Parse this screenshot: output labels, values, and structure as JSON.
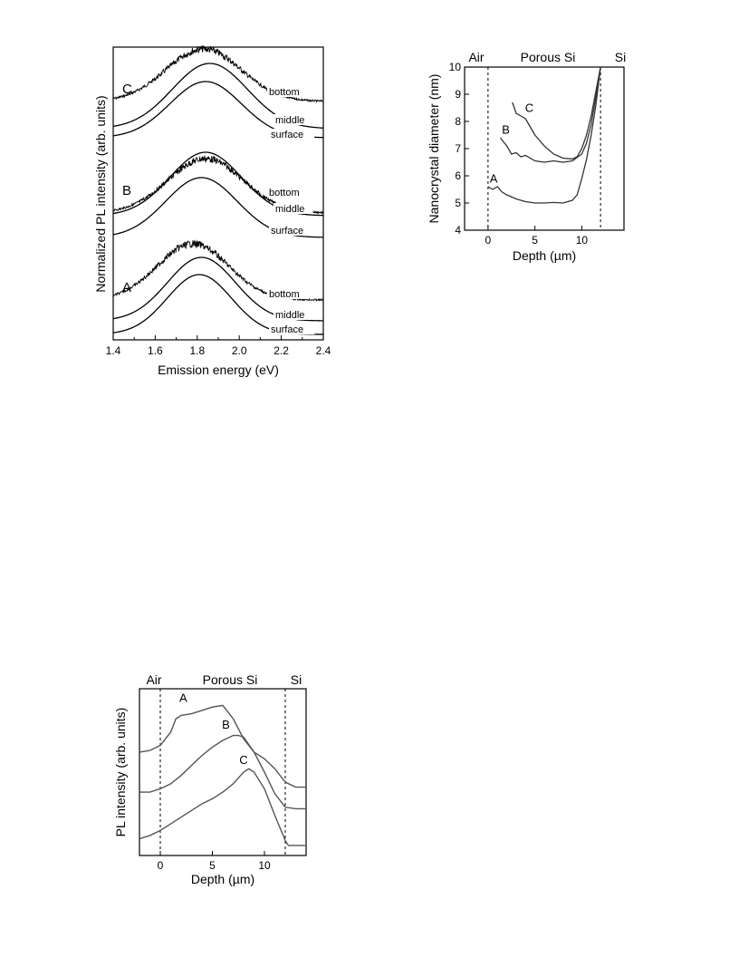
{
  "figures": {
    "pl_spectra": {
      "xlabel": "Emission energy  (eV)",
      "ylabel": "Normalized PL intensity  (arb. units)",
      "xticks": [
        "1.4",
        "1.6",
        "1.8",
        "2.0",
        "2.2",
        "2.4"
      ],
      "samples": [
        {
          "label": "C",
          "curves": [
            "bottom",
            "middle",
            "surface"
          ]
        },
        {
          "label": "B",
          "curves": [
            "bottom",
            "middle",
            "surface"
          ]
        },
        {
          "label": "A",
          "curves": [
            "bottom",
            "middle",
            "surface"
          ]
        }
      ]
    },
    "diameter": {
      "xlabel": "Depth (µm)",
      "ylabel": "Nanocrystal diameter (nm)",
      "region_labels": {
        "air": "Air",
        "porous": "Porous Si",
        "si": "Si"
      },
      "xticks": [
        "0",
        "5",
        "10"
      ],
      "yticks": [
        "4",
        "5",
        "6",
        "7",
        "8",
        "9",
        "10"
      ],
      "series_labels": [
        "A",
        "B",
        "C"
      ]
    },
    "pl_depth": {
      "xlabel": "Depth  (µm)",
      "ylabel": "PL intensity (arb. units)",
      "region_labels": {
        "air": "Air",
        "porous": "Porous Si",
        "si": "Si"
      },
      "xticks": [
        "0",
        "5",
        "10"
      ],
      "series_labels": [
        "A",
        "B",
        "C"
      ]
    }
  },
  "chart_data": [
    {
      "type": "line",
      "xlabel": "Emission energy  (eV)",
      "ylabel": "Normalized PL intensity  (arb. units)",
      "xlim": [
        1.4,
        2.4
      ],
      "grid": false,
      "series": [
        {
          "name": "C bottom",
          "peak_eV": 1.83,
          "fwhm_eV": 0.42,
          "noisy": true
        },
        {
          "name": "C middle",
          "peak_eV": 1.86,
          "fwhm_eV": 0.42,
          "noisy": false
        },
        {
          "name": "C surface",
          "peak_eV": 1.84,
          "fwhm_eV": 0.4,
          "noisy": false
        },
        {
          "name": "B bottom",
          "peak_eV": 1.84,
          "fwhm_eV": 0.42,
          "noisy": true
        },
        {
          "name": "B middle",
          "peak_eV": 1.84,
          "fwhm_eV": 0.4,
          "noisy": false
        },
        {
          "name": "B surface",
          "peak_eV": 1.82,
          "fwhm_eV": 0.4,
          "noisy": false
        },
        {
          "name": "A bottom",
          "peak_eV": 1.78,
          "fwhm_eV": 0.4,
          "noisy": true
        },
        {
          "name": "A middle",
          "peak_eV": 1.82,
          "fwhm_eV": 0.38,
          "noisy": false
        },
        {
          "name": "A surface",
          "peak_eV": 1.81,
          "fwhm_eV": 0.36,
          "noisy": false
        }
      ]
    },
    {
      "type": "line",
      "xlabel": "Depth (µm)",
      "ylabel": "Nanocrystal diameter (nm)",
      "xlim": [
        -2.5,
        14.5
      ],
      "ylim": [
        4,
        10
      ],
      "boundaries": [
        0,
        12
      ],
      "series": [
        {
          "name": "A",
          "x": [
            0,
            0.5,
            1,
            1.5,
            2,
            3,
            4,
            5,
            6,
            7,
            8,
            9,
            9.5,
            10,
            10.5,
            11,
            11.5,
            12
          ],
          "y": [
            5.6,
            5.5,
            5.6,
            5.4,
            5.3,
            5.15,
            5.05,
            5.0,
            5.0,
            5.02,
            5.0,
            5.1,
            5.3,
            5.9,
            6.6,
            7.5,
            8.6,
            10.0
          ]
        },
        {
          "name": "B",
          "x": [
            1.3,
            2,
            2.5,
            3,
            3.5,
            4,
            5,
            6,
            7,
            8,
            9,
            10,
            10.5,
            11,
            11.5,
            12
          ],
          "y": [
            7.4,
            7.1,
            6.8,
            6.85,
            6.7,
            6.75,
            6.55,
            6.5,
            6.55,
            6.5,
            6.55,
            6.8,
            7.2,
            7.9,
            8.9,
            10.0
          ]
        },
        {
          "name": "C",
          "x": [
            2.6,
            3,
            3.5,
            4,
            4.5,
            5,
            6,
            7,
            8,
            9,
            9.5,
            10,
            10.5,
            11,
            11.5,
            12
          ],
          "y": [
            8.7,
            8.3,
            8.2,
            8.1,
            7.8,
            7.5,
            7.1,
            6.8,
            6.65,
            6.62,
            6.7,
            7.0,
            7.5,
            8.2,
            9.1,
            10.0
          ]
        }
      ]
    },
    {
      "type": "line",
      "xlabel": "Depth  (µm)",
      "ylabel": "PL intensity (arb. units)",
      "xlim": [
        -2,
        14
      ],
      "boundaries": [
        0,
        12
      ],
      "series": [
        {
          "name": "A",
          "x": [
            -2,
            -1,
            0,
            0.5,
            1,
            1.5,
            2,
            3,
            4,
            5,
            6,
            7,
            8,
            9,
            10,
            11,
            12,
            13,
            14
          ],
          "y": [
            0.62,
            0.63,
            0.66,
            0.7,
            0.74,
            0.82,
            0.84,
            0.85,
            0.87,
            0.89,
            0.9,
            0.82,
            0.7,
            0.62,
            0.58,
            0.52,
            0.44,
            0.41,
            0.41
          ]
        },
        {
          "name": "B",
          "x": [
            -2,
            -1,
            0,
            1,
            2,
            3,
            4,
            5,
            6,
            7,
            7.5,
            8,
            9,
            10,
            11,
            12,
            13,
            14
          ],
          "y": [
            0.38,
            0.38,
            0.4,
            0.43,
            0.48,
            0.54,
            0.6,
            0.65,
            0.69,
            0.72,
            0.72,
            0.71,
            0.62,
            0.5,
            0.37,
            0.29,
            0.28,
            0.28
          ]
        },
        {
          "name": "C",
          "x": [
            -2,
            -1,
            0,
            1,
            2,
            3,
            4,
            5,
            6,
            7,
            8,
            8.5,
            9,
            10,
            11,
            12,
            12.3,
            13,
            14
          ],
          "y": [
            0.1,
            0.12,
            0.15,
            0.19,
            0.23,
            0.27,
            0.31,
            0.34,
            0.38,
            0.43,
            0.5,
            0.52,
            0.5,
            0.4,
            0.24,
            0.09,
            0.06,
            0.06,
            0.06
          ]
        }
      ]
    }
  ]
}
